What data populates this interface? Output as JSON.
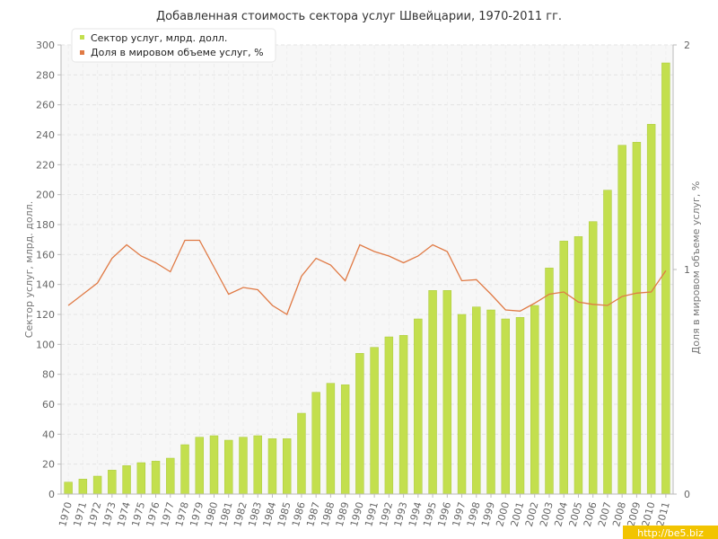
{
  "chart_data": {
    "type": "bar+line",
    "title": "Добавленная стоимость сектора услуг Швейцарии, 1970-2011 гг.",
    "categories": [
      "1970",
      "1971",
      "1972",
      "1973",
      "1974",
      "1975",
      "1976",
      "1977",
      "1978",
      "1979",
      "1980",
      "1981",
      "1982",
      "1983",
      "1984",
      "1985",
      "1986",
      "1987",
      "1988",
      "1989",
      "1990",
      "1991",
      "1992",
      "1993",
      "1994",
      "1995",
      "1996",
      "1997",
      "1998",
      "1999",
      "2000",
      "2001",
      "2002",
      "2003",
      "2004",
      "2005",
      "2006",
      "2007",
      "2008",
      "2009",
      "2010",
      "2011"
    ],
    "series": [
      {
        "name": "Сектор услуг, млрд. долл.",
        "type": "bar",
        "axis": "left",
        "color": "#c3df4e",
        "values": [
          8,
          10,
          12,
          16,
          19,
          21,
          22,
          24,
          33,
          38,
          39,
          36,
          38,
          39,
          37,
          37,
          54,
          68,
          74,
          73,
          94,
          98,
          105,
          106,
          117,
          136,
          136,
          120,
          125,
          123,
          117,
          118,
          126,
          151,
          169,
          172,
          182,
          203,
          233,
          235,
          247,
          288
        ]
      },
      {
        "name": "Доля в мировом объеме услуг, %",
        "type": "line",
        "axis": "right",
        "color": "#e07a45",
        "values": [
          0.84,
          0.89,
          0.94,
          1.05,
          1.11,
          1.06,
          1.03,
          0.99,
          1.13,
          1.13,
          1.01,
          0.89,
          0.92,
          0.91,
          0.84,
          0.8,
          0.97,
          1.05,
          1.02,
          0.95,
          1.11,
          1.08,
          1.06,
          1.03,
          1.06,
          1.11,
          1.08,
          0.95,
          0.955,
          0.89,
          0.82,
          0.815,
          0.85,
          0.89,
          0.9,
          0.855,
          0.845,
          0.84,
          0.88,
          0.895,
          0.9,
          0.995
        ]
      }
    ],
    "ylabel": "Сектор услуг, млрд. долл.",
    "y2label": "Доля в мировом объеме услуг, %",
    "ylim": [
      0,
      300
    ],
    "y2lim": [
      0,
      2
    ],
    "yticks": [
      "0",
      "20",
      "40",
      "60",
      "80",
      "100",
      "120",
      "140",
      "160",
      "180",
      "200",
      "220",
      "240",
      "260",
      "280",
      "300"
    ],
    "y2ticks": [
      "0",
      "1",
      "2"
    ],
    "grid": true,
    "legend_position": "top-left"
  },
  "watermark": "http://be5.biz"
}
